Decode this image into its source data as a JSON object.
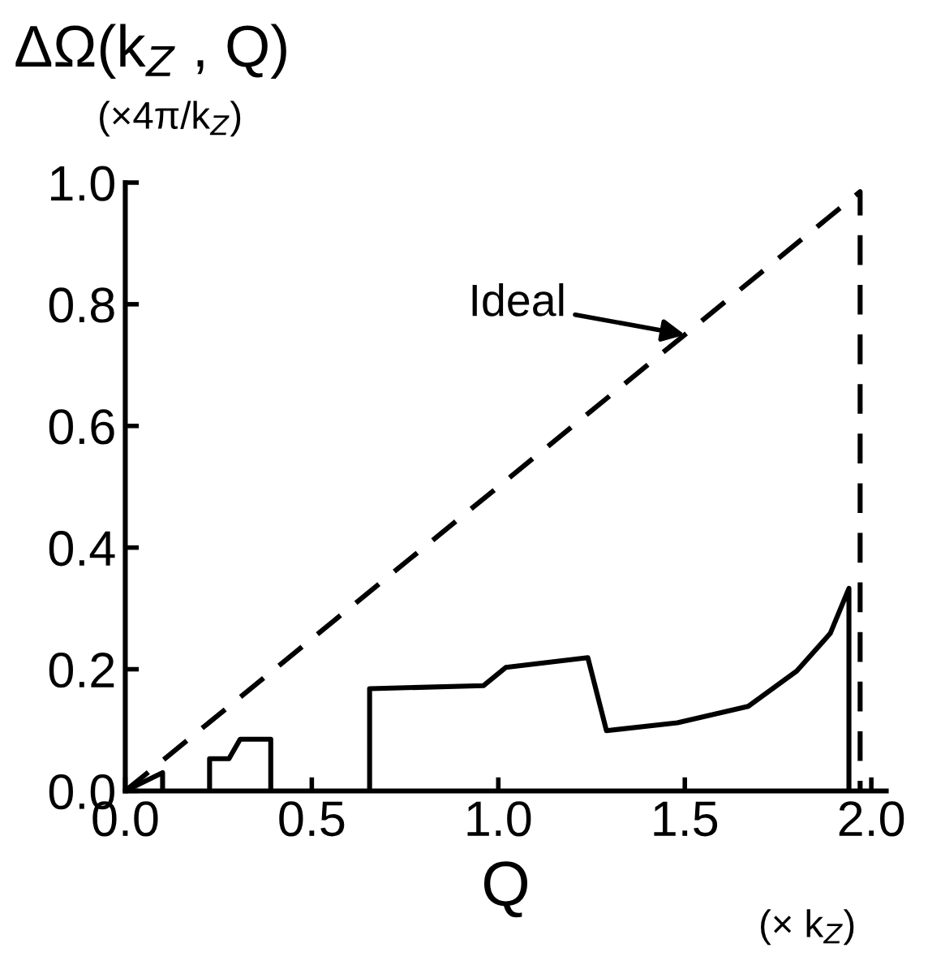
{
  "chart_data": {
    "type": "line",
    "ylabel": "ΔΩ(k$_{Z}$ , Q)",
    "xlabel": "Q",
    "annotations": [
      "(×4π/k$_{Z}$)",
      "(× k$_{Z}$)",
      {
        "text": "Ideal",
        "x": 1.5,
        "y": 0.75
      }
    ],
    "series": [
      {
        "line_style": "dashed",
        "color": "#000000",
        "x": [
          0,
          1.97,
          1.97
        ],
        "values": [
          0,
          0.985,
          0
        ]
      },
      {
        "line_style": "solid",
        "color": "#000000",
        "x": [
          0,
          0.1,
          0.1,
          null,
          0.226,
          0.226,
          0.278,
          0.308,
          0.39,
          0.39,
          null,
          0.655,
          0.655,
          0.96,
          1.02,
          1.24,
          1.29,
          1.48,
          1.67,
          1.8,
          1.89,
          1.94,
          1.94
        ],
        "values": [
          0,
          0.03,
          0,
          null,
          0,
          0.053,
          0.053,
          0.085,
          0.085,
          0,
          null,
          0,
          0.168,
          0.173,
          0.203,
          0.219,
          0.099,
          0.112,
          0.139,
          0.197,
          0.259,
          0.333,
          0
        ]
      }
    ],
    "marker": "none",
    "grid": false,
    "legend": false,
    "xlim": [
      0,
      2.04
    ],
    "ylim": [
      0,
      1.0
    ],
    "xticks": [
      {
        "value": 0,
        "label": "0.0"
      },
      0.5,
      {
        "value": 1,
        "label": "1.0"
      },
      1.5,
      {
        "value": 2,
        "label": "2.0"
      }
    ],
    "yticks": [
      {
        "value": 0,
        "label": "0.0"
      },
      0.2,
      0.4,
      0.6,
      0.8,
      {
        "value": 1,
        "label": "1.0"
      }
    ]
  }
}
